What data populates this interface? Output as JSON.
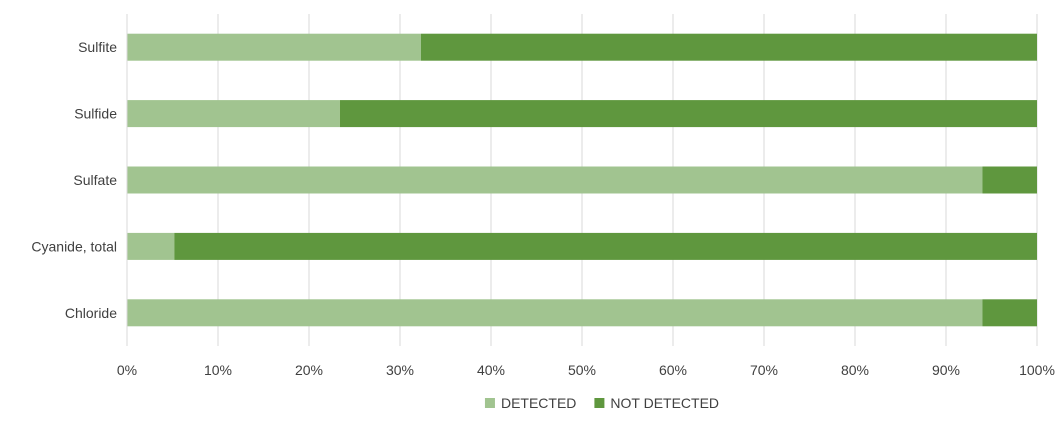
{
  "chart_data": {
    "type": "bar",
    "orientation": "horizontal",
    "stacking": "percent",
    "categories": [
      "Sulfite",
      "Sulfide",
      "Sulfate",
      "Cyanide, total",
      "Chloride"
    ],
    "series": [
      {
        "name": "DETECTED",
        "color": "#a1c490",
        "values": [
          32.3,
          23.4,
          94.0,
          5.2,
          94.0
        ]
      },
      {
        "name": "NOT DETECTED",
        "color": "#5f973e",
        "values": [
          67.7,
          76.6,
          6.0,
          94.8,
          6.0
        ]
      }
    ],
    "xlim": [
      0,
      100
    ],
    "x_ticks": [
      "0%",
      "10%",
      "20%",
      "30%",
      "40%",
      "50%",
      "60%",
      "70%",
      "80%",
      "90%",
      "100%"
    ],
    "grid": "vertical",
    "legend_position": "bottom",
    "title": "",
    "xlabel": "",
    "ylabel": ""
  }
}
